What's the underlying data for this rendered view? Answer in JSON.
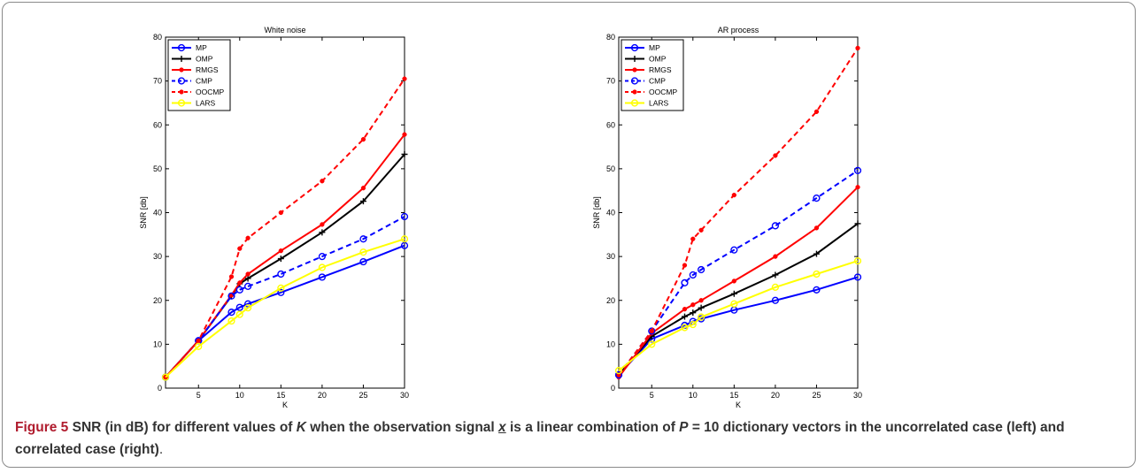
{
  "chart_data": [
    {
      "type": "line",
      "title": "White noise",
      "xlabel": "K",
      "ylabel": "SNR [db]",
      "xlim": [
        1,
        30
      ],
      "ylim": [
        0,
        80
      ],
      "xticks": [
        5,
        10,
        15,
        20,
        25,
        30
      ],
      "yticks": [
        0,
        10,
        20,
        30,
        40,
        50,
        60,
        70,
        80
      ],
      "legend_position": "top-left",
      "x": [
        1,
        5,
        9,
        10,
        11,
        15,
        20,
        25,
        30
      ],
      "series": [
        {
          "name": "MP",
          "color": "#0000ff",
          "dash": "solid",
          "marker": "circle",
          "values": [
            2.5,
            10.8,
            17.3,
            18.4,
            19.2,
            21.8,
            25.3,
            28.8,
            32.5
          ]
        },
        {
          "name": "OMP",
          "color": "#000000",
          "dash": "solid",
          "marker": "plus",
          "values": [
            2.5,
            10.8,
            21.0,
            23.8,
            25.0,
            29.5,
            35.5,
            42.6,
            53.3
          ]
        },
        {
          "name": "RMGS",
          "color": "#ff0000",
          "dash": "solid",
          "marker": "dot",
          "values": [
            2.5,
            10.8,
            21.2,
            24.0,
            26.0,
            31.3,
            37.3,
            45.6,
            57.8
          ]
        },
        {
          "name": "CMP",
          "color": "#0000ff",
          "dash": "dashed",
          "marker": "circle",
          "values": [
            2.5,
            10.8,
            21.0,
            22.4,
            23.2,
            26.0,
            30.0,
            34.0,
            39.1
          ]
        },
        {
          "name": "OOCMP",
          "color": "#ff0000",
          "dash": "dashed",
          "marker": "dot",
          "values": [
            2.5,
            10.8,
            25.4,
            31.8,
            34.2,
            40.0,
            47.2,
            56.7,
            70.5
          ]
        },
        {
          "name": "LARS",
          "color": "#ffff00",
          "dash": "solid",
          "marker": "circle",
          "values": [
            2.5,
            9.5,
            15.3,
            16.8,
            18.3,
            22.8,
            27.5,
            31.0,
            34.0
          ]
        }
      ]
    },
    {
      "type": "line",
      "title": "AR process",
      "xlabel": "K",
      "ylabel": "SNR [db]",
      "xlim": [
        1,
        30
      ],
      "ylim": [
        0,
        80
      ],
      "xticks": [
        5,
        10,
        15,
        20,
        25,
        30
      ],
      "yticks": [
        0,
        10,
        20,
        30,
        40,
        50,
        60,
        70,
        80
      ],
      "legend_position": "top-left",
      "x": [
        1,
        5,
        9,
        10,
        11,
        15,
        20,
        25,
        30
      ],
      "series": [
        {
          "name": "MP",
          "color": "#0000ff",
          "dash": "solid",
          "marker": "circle",
          "values": [
            3.0,
            11.2,
            14.3,
            15.2,
            15.8,
            17.8,
            20.0,
            22.4,
            25.3
          ]
        },
        {
          "name": "OMP",
          "color": "#000000",
          "dash": "solid",
          "marker": "plus",
          "values": [
            3.0,
            11.8,
            16.3,
            17.2,
            18.3,
            21.5,
            25.8,
            30.6,
            37.5
          ]
        },
        {
          "name": "RMGS",
          "color": "#ff0000",
          "dash": "solid",
          "marker": "dot",
          "values": [
            2.5,
            12.5,
            18.0,
            19.0,
            20.0,
            24.4,
            30.0,
            36.5,
            45.8
          ]
        },
        {
          "name": "CMP",
          "color": "#0000ff",
          "dash": "dashed",
          "marker": "circle",
          "values": [
            3.0,
            13.0,
            24.0,
            25.8,
            27.0,
            31.5,
            37.0,
            43.3,
            49.6
          ]
        },
        {
          "name": "OOCMP",
          "color": "#ff0000",
          "dash": "dashed",
          "marker": "dot",
          "values": [
            3.0,
            13.0,
            28.0,
            34.0,
            36.0,
            44.0,
            53.0,
            63.0,
            77.5
          ]
        },
        {
          "name": "LARS",
          "color": "#ffff00",
          "dash": "solid",
          "marker": "circle",
          "values": [
            4.0,
            10.0,
            13.8,
            14.5,
            16.2,
            19.2,
            23.0,
            26.0,
            29.0
          ]
        }
      ]
    }
  ],
  "caption": {
    "label": "Figure 5",
    "part1": " SNR (in dB) for different values of ",
    "k_symbol": "K",
    "part2": " when the observation signal ",
    "x_symbol": "x",
    "part3": " is a linear combination of ",
    "p_symbol": "P",
    "part4": " = 10 dictionary vectors in the uncorrelated case (left) and correlated case (right)",
    "end": "."
  }
}
